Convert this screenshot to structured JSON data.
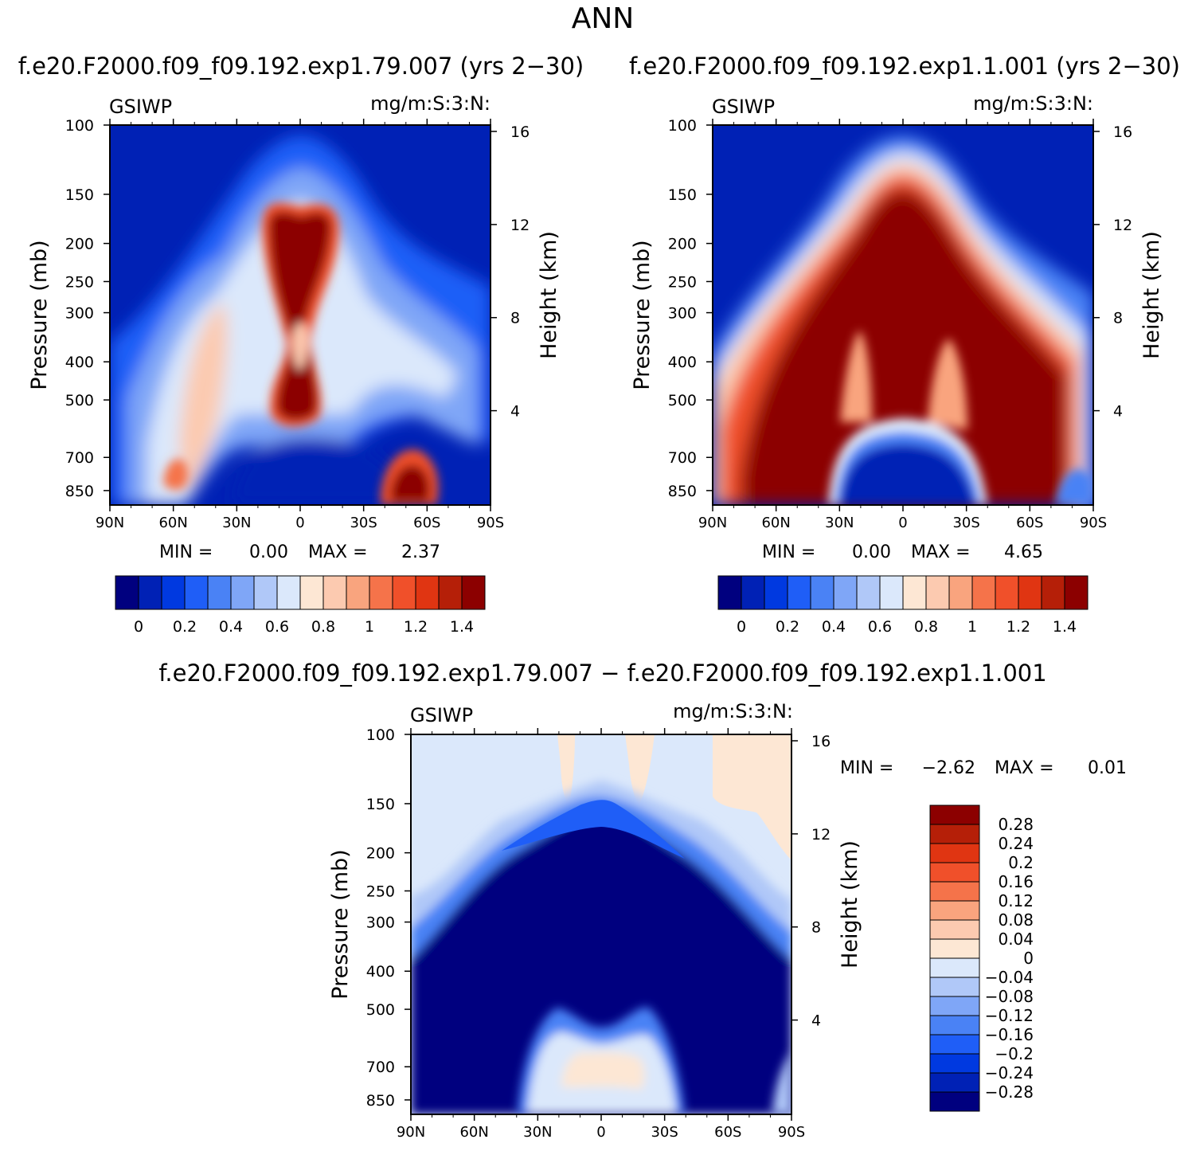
{
  "figure_title": "ANN",
  "chart_data": [
    {
      "type": "heatmap",
      "id": "p1",
      "title": "f.e20.F2000.f09_f09.192.exp1.79.007 (yrs 2−30)",
      "left_label": "GSIWP",
      "units": "mg/m:S:3:N:",
      "xlabel": "",
      "ylabel": "Pressure (mb)",
      "ylabel_right": "Height (km)",
      "x_ticks": [
        "90N",
        "60N",
        "30N",
        "0",
        "30S",
        "60S",
        "90S"
      ],
      "y_ticks": [
        "100",
        "150",
        "200",
        "250",
        "300",
        "400",
        "500",
        "700",
        "850"
      ],
      "y_ticks_right": [
        "16",
        "12",
        "8",
        "4"
      ],
      "xlim": [
        90,
        -90
      ],
      "ylim": [
        100,
        925
      ],
      "min_text": "MIN =",
      "min_value": "0.00",
      "max_text": "MAX =",
      "max_value": "2.37",
      "colorbar_labels": [
        "0",
        "0.2",
        "0.4",
        "0.6",
        "0.8",
        "1",
        "1.2",
        "1.4"
      ]
    },
    {
      "type": "heatmap",
      "id": "p2",
      "title": "f.e20.F2000.f09_f09.192.exp1.1.001 (yrs 2−30)",
      "left_label": "GSIWP",
      "units": "mg/m:S:3:N:",
      "xlabel": "",
      "ylabel": "Pressure (mb)",
      "ylabel_right": "Height (km)",
      "x_ticks": [
        "90N",
        "60N",
        "30N",
        "0",
        "30S",
        "60S",
        "90S"
      ],
      "y_ticks": [
        "100",
        "150",
        "200",
        "250",
        "300",
        "400",
        "500",
        "700",
        "850"
      ],
      "y_ticks_right": [
        "16",
        "12",
        "8",
        "4"
      ],
      "xlim": [
        90,
        -90
      ],
      "ylim": [
        100,
        925
      ],
      "min_text": "MIN =",
      "min_value": "0.00",
      "max_text": "MAX =",
      "max_value": "4.65",
      "colorbar_labels": [
        "0",
        "0.2",
        "0.4",
        "0.6",
        "0.8",
        "1",
        "1.2",
        "1.4"
      ]
    },
    {
      "type": "heatmap",
      "id": "p3",
      "title": "f.e20.F2000.f09_f09.192.exp1.79.007 − f.e20.F2000.f09_f09.192.exp1.1.001",
      "left_label": "GSIWP",
      "units": "mg/m:S:3:N:",
      "xlabel": "",
      "ylabel": "Pressure (mb)",
      "ylabel_right": "Height (km)",
      "x_ticks": [
        "90N",
        "60N",
        "30N",
        "0",
        "30S",
        "60S",
        "90S"
      ],
      "y_ticks": [
        "100",
        "150",
        "200",
        "250",
        "300",
        "400",
        "500",
        "700",
        "850"
      ],
      "y_ticks_right": [
        "16",
        "12",
        "8",
        "4"
      ],
      "xlim": [
        90,
        -90
      ],
      "ylim": [
        100,
        925
      ],
      "min_text": "MIN =",
      "min_value": "−2.62",
      "max_text": "MAX =",
      "max_value": "0.01",
      "colorbar_labels": [
        "0.28",
        "0.24",
        "0.2",
        "0.16",
        "0.12",
        "0.08",
        "0.04",
        "0",
        "−0.04",
        "−0.08",
        "−0.12",
        "−0.16",
        "−0.2",
        "−0.24",
        "−0.28"
      ]
    }
  ],
  "palette": [
    "#00007f",
    "#0021b5",
    "#0039e0",
    "#1f5ef7",
    "#4a82f5",
    "#7fa6f7",
    "#b0c8f8",
    "#dbe8fb",
    "#fde7d4",
    "#fccab0",
    "#f9a47e",
    "#f5734a",
    "#f0502a",
    "#e03512",
    "#b51f08",
    "#8c0000"
  ]
}
